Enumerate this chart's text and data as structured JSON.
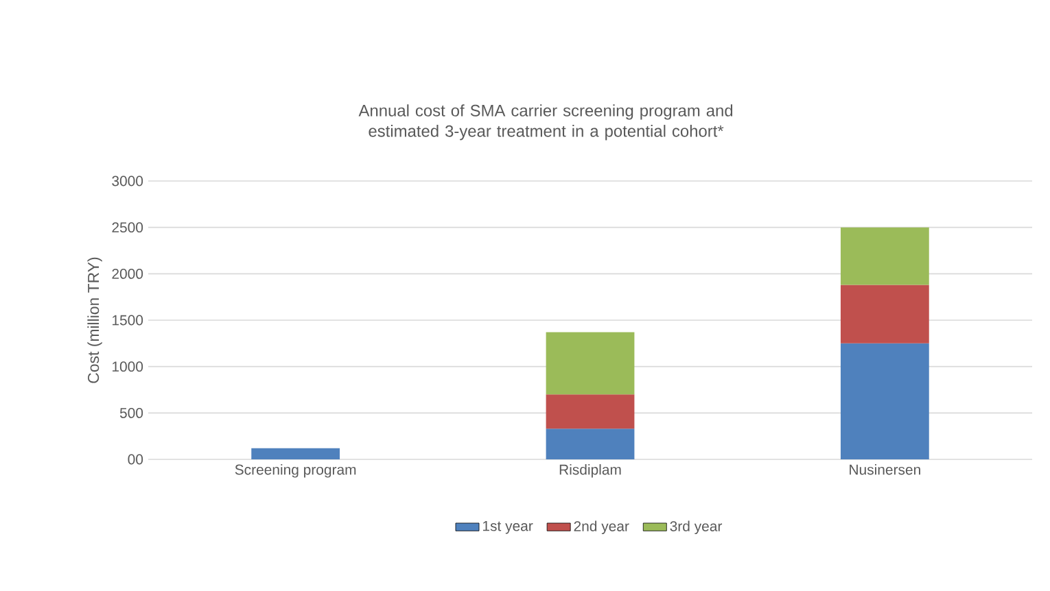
{
  "chart_data": {
    "type": "bar",
    "title": "Annual cost of SMA carrier screening program and estimated 3-year treatment in a potential cohort*",
    "ylabel": "Cost (million TRY)",
    "categories": [
      "Screening program",
      "Risdiplam",
      "Nusinersen"
    ],
    "stacked": true,
    "series": [
      {
        "name": "1st year",
        "color": "#4f81bd",
        "values": [
          120,
          330,
          1250
        ]
      },
      {
        "name": "2nd year",
        "color": "#c0504d",
        "values": [
          null,
          370,
          630
        ]
      },
      {
        "name": "3rd year",
        "color": "#9bbb59",
        "values": [
          null,
          670,
          620
        ]
      }
    ],
    "ylim": [
      0,
      3000
    ],
    "yticks": [
      {
        "value": 0,
        "label": "00"
      },
      500,
      1000,
      1500,
      2000,
      2500,
      3000
    ],
    "grid": "y",
    "legend": "bottom"
  }
}
